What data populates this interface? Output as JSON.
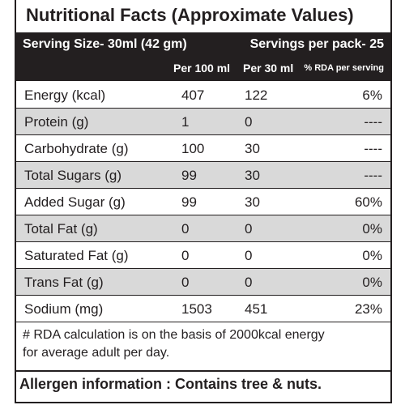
{
  "header": {
    "title": "Nutritional Facts (Approximate Values)"
  },
  "serving": {
    "size": "Serving Size-  30ml (42 gm)",
    "servings": "Servings per pack- 25"
  },
  "columns": [
    "Per 100 ml",
    "Per 30 ml",
    "% RDA per serving"
  ],
  "table": {
    "rows": [
      [
        "Energy (kcal)",
        "407",
        "122",
        "6%"
      ],
      [
        "Protein (g)",
        "1",
        "0",
        "----"
      ],
      [
        "Carbohydrate (g)",
        "100",
        "30",
        "----"
      ],
      [
        "Total Sugars (g)",
        "99",
        "30",
        "----"
      ],
      [
        "Added Sugar (g)",
        "99",
        "30",
        "60%"
      ],
      [
        "Total Fat (g)",
        "0",
        "0",
        "0%"
      ],
      [
        "Saturated Fat (g)",
        "0",
        "0",
        "0%"
      ],
      [
        "Trans Fat (g)",
        "0",
        "0",
        "0%"
      ],
      [
        "Sodium (mg)",
        "1503",
        "451",
        "23%"
      ]
    ]
  },
  "footnote": [
    "# RDA calculation is on the basis of 2000kcal energy",
    "for average adult per day."
  ],
  "allergen": "Allergen information : Contains tree & nuts."
}
